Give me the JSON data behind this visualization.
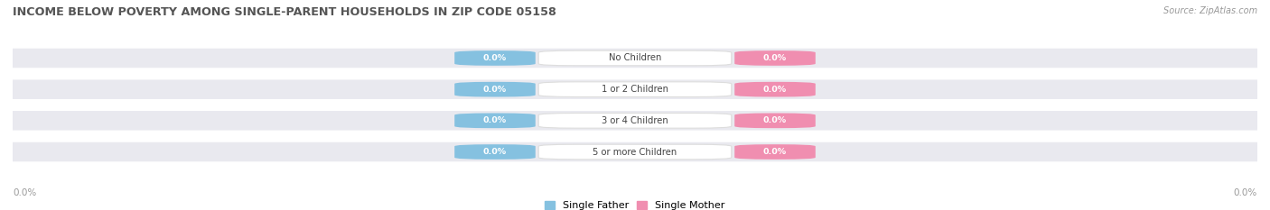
{
  "title": "INCOME BELOW POVERTY AMONG SINGLE-PARENT HOUSEHOLDS IN ZIP CODE 05158",
  "source": "Source: ZipAtlas.com",
  "categories": [
    "No Children",
    "1 or 2 Children",
    "3 or 4 Children",
    "5 or more Children"
  ],
  "single_father_values": [
    0.0,
    0.0,
    0.0,
    0.0
  ],
  "single_mother_values": [
    0.0,
    0.0,
    0.0,
    0.0
  ],
  "father_color": "#85C1E0",
  "mother_color": "#F08EB0",
  "bar_bg_color": "#E9E9EF",
  "title_color": "#555555",
  "source_color": "#999999",
  "axis_label_color": "#999999",
  "background_color": "#FFFFFF",
  "figsize": [
    14.06,
    2.33
  ],
  "dpi": 100
}
